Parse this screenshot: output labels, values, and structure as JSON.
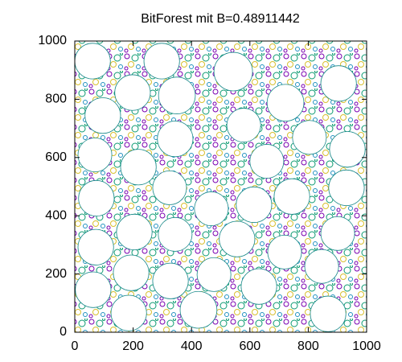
{
  "chart_data": {
    "type": "bubble",
    "title": "BitForest mit B=0.48911442",
    "xlim": [
      0,
      1000
    ],
    "ylim": [
      0,
      1000
    ],
    "xticks": [
      0,
      200,
      400,
      600,
      800,
      1000
    ],
    "yticks": [
      0,
      200,
      400,
      600,
      800,
      1000
    ],
    "color": "#ffffff",
    "edge_color": "#1a8a8a",
    "x": [
      61,
      298,
      543,
      722,
      904,
      198,
      350,
      96,
      579,
      344,
      804,
      934,
      69,
      218,
      658,
      74,
      325,
      614,
      468,
      744,
      931,
      204,
      344,
      556,
      72,
      719,
      901,
      846,
      193,
      328,
      477,
      631,
      63,
      185,
      424,
      868
    ],
    "values": [
      931,
      931,
      895,
      788,
      854,
      823,
      813,
      744,
      711,
      664,
      669,
      628,
      609,
      567,
      587,
      460,
      496,
      438,
      424,
      466,
      496,
      344,
      336,
      320,
      292,
      275,
      339,
      226,
      204,
      176,
      198,
      157,
      146,
      66,
      77,
      63
    ],
    "radii": [
      61,
      61,
      66,
      63,
      61,
      61,
      63,
      61,
      58,
      61,
      58,
      61,
      58,
      61,
      58,
      61,
      58,
      61,
      58,
      61,
      61,
      61,
      58,
      61,
      61,
      58,
      58,
      58,
      61,
      61,
      58,
      61,
      61,
      61,
      63,
      61
    ]
  }
}
